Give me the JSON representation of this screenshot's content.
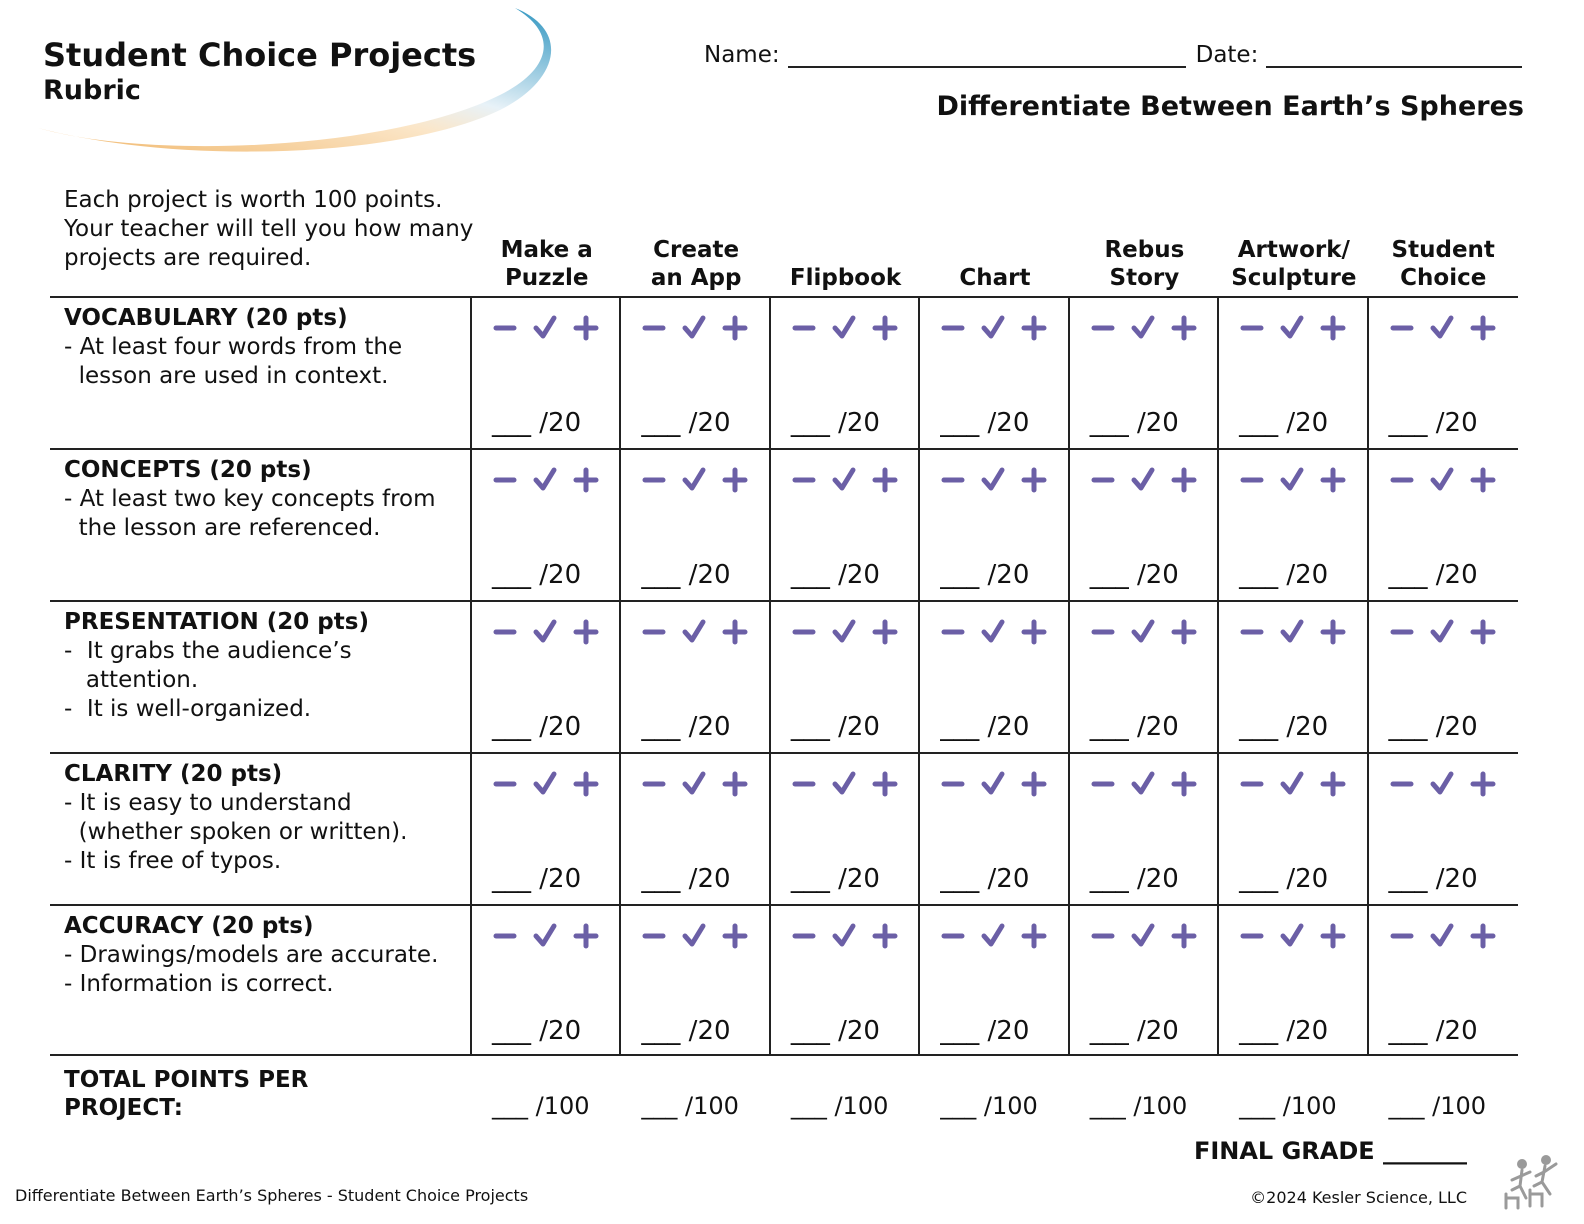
{
  "header": {
    "title": "Student Choice Projects",
    "subtitle": "Rubric",
    "name_label": "Name:",
    "date_label": "Date:",
    "lesson_title": "Differentiate Between Earth’s Spheres"
  },
  "intro": "Each project is worth 100 points. Your teacher will tell you how many projects are required.",
  "columns": [
    {
      "label": "Make a\nPuzzle"
    },
    {
      "label": "Create\nan App"
    },
    {
      "label": "Flipbook"
    },
    {
      "label": "Chart"
    },
    {
      "label": "Rebus\nStory"
    },
    {
      "label": "Artwork/\nSculpture"
    },
    {
      "label": "Student\nChoice"
    }
  ],
  "criteria": [
    {
      "title": "VOCABULARY (20 pts)",
      "bullets": [
        "- At least four words from the",
        "  lesson are used in context."
      ],
      "score": "___ /20"
    },
    {
      "title": "CONCEPTS (20 pts)",
      "bullets": [
        "- At least two key concepts from",
        "  the lesson are referenced."
      ],
      "score": "___ /20"
    },
    {
      "title": "PRESENTATION (20 pts)",
      "bullets": [
        "-  It grabs the audience’s",
        "   attention.",
        "-  It is well-organized."
      ],
      "score": "___ /20"
    },
    {
      "title": "CLARITY (20 pts)",
      "bullets": [
        "- It is easy to understand",
        "  (whether spoken or written).",
        "- It is free of typos."
      ],
      "score": "___ /20"
    },
    {
      "title": "ACCURACY (20 pts)",
      "bullets": [
        "- Drawings/models are accurate.",
        "- Information is correct."
      ],
      "score": "___ /20"
    }
  ],
  "totals": {
    "label_line1": "TOTAL POINTS PER",
    "label_line2": "PROJECT:",
    "score": "___ /100"
  },
  "final_grade": "FINAL GRADE _______",
  "footer": {
    "left": "Differentiate Between Earth’s Spheres - Student Choice Projects",
    "right": "©2024  Kesler Science, LLC"
  },
  "colors": {
    "mark": "#6b5fa6",
    "swoosh_blue": "#3f9fc4",
    "swoosh_orange": "#f0b66a"
  },
  "icons": [
    "minus-icon",
    "check-icon",
    "plus-icon",
    "kesler-logo"
  ]
}
